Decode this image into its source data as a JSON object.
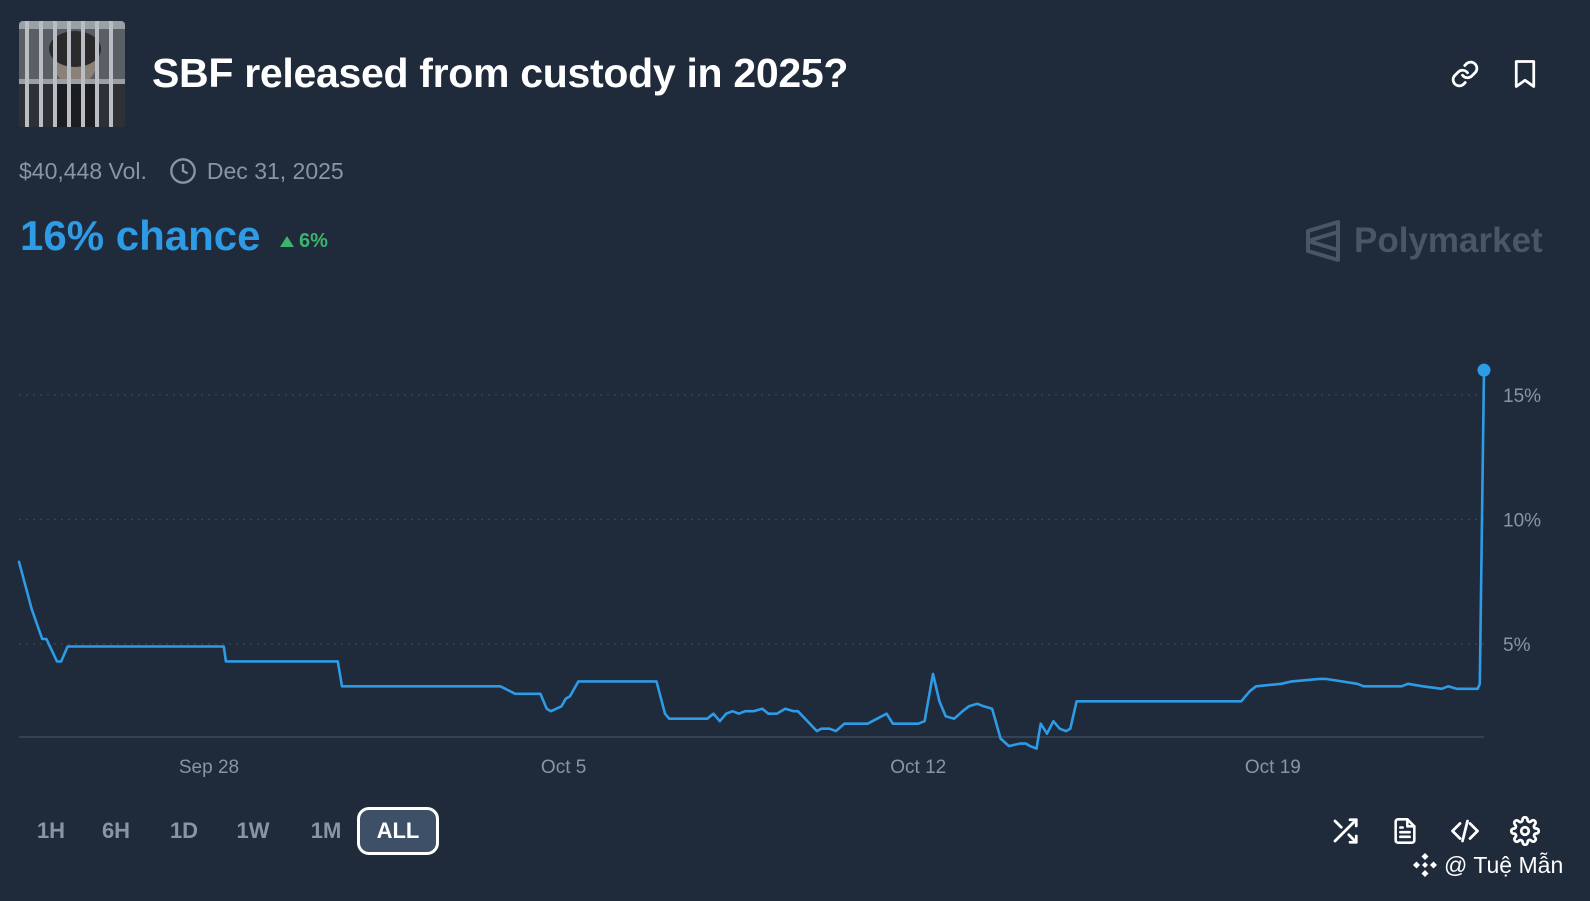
{
  "header": {
    "title": "SBF released from custody in 2025?",
    "thumbnail_icon": "market-thumbnail-image",
    "actions": [
      {
        "icon": "link-icon"
      },
      {
        "icon": "bookmark-icon"
      }
    ]
  },
  "meta": {
    "volume": "$40,448 Vol.",
    "end_date": "Dec 31, 2025",
    "clock_icon": "clock-icon"
  },
  "probability": {
    "chance": "16% chance",
    "change": "6%",
    "change_icon": "triangle-up-icon"
  },
  "brand": {
    "name": "Polymarket"
  },
  "chart_data": {
    "type": "line",
    "x_labels": [
      "Sep 28",
      "Oct 5",
      "Oct 12",
      "Oct 19"
    ],
    "y_ticks": [
      "15%",
      "10%",
      "5%"
    ],
    "ylim": [
      0,
      18
    ],
    "grid": true,
    "line_color": "#2e9be6",
    "grid_color": "#3a4658",
    "series": [
      {
        "x": [
          "Sep 24 06:00",
          "Sep 24 12:00",
          "Sep 24 17:00",
          "Sep 24 19:00",
          "Sep 25 00:00",
          "Sep 25 02:00",
          "Sep 25 05:00",
          "Sep 25 08:00",
          "Sep 25 09:00",
          "Sep 25 11:00",
          "Sep 25 13:00",
          "Sep 28 07:00",
          "Sep 28 08:00",
          "Sep 30 13:00",
          "Sep 30 15:00",
          "Oct 3 18:00",
          "Oct 4 01:00",
          "Oct 4 13:00",
          "Oct 4 16:00",
          "Oct 4 18:00",
          "Oct 4 23:00",
          "Oct 5 01:00",
          "Oct 5 03:00",
          "Oct 5 05:00",
          "Oct 5 07:00",
          "Oct 5 10:00",
          "Oct 5 14:00",
          "Oct 6 20:00",
          "Oct 7 00:00",
          "Oct 7 02:00",
          "Oct 7 20:00",
          "Oct 7 23:00",
          "Oct 8 02:00",
          "Oct 8 05:00",
          "Oct 8 08:00",
          "Oct 8 11:00",
          "Oct 8 14:00",
          "Oct 8 18:00",
          "Oct 8 22:00",
          "Oct 9 01:00",
          "Oct 9 05:00",
          "Oct 9 09:00",
          "Oct 9 13:00",
          "Oct 9 15:00",
          "Oct 10 00:00",
          "Oct 10 02:00",
          "Oct 10 06:00",
          "Oct 10 09:00",
          "Oct 10 13:00",
          "Oct 10 16:00",
          "Oct 10 20:00",
          "Oct 11 00:00",
          "Oct 11 09:00",
          "Oct 11 12:00",
          "Oct 11 15:00",
          "Oct 12 00:00",
          "Oct 12 03:00",
          "Oct 12 07:00",
          "Oct 12 10:00",
          "Oct 12 13:00",
          "Oct 12 17:00",
          "Oct 12 21:00",
          "Oct 13 00:00",
          "Oct 13 04:00",
          "Oct 13 07:00",
          "Oct 13 11:00",
          "Oct 13 15:00",
          "Oct 13 19:00",
          "Oct 14 00:00",
          "Oct 14 03:00",
          "Oct 14 05:00",
          "Oct 14 08:00",
          "Oct 14 10:00",
          "Oct 14 13:00",
          "Oct 14 16:00",
          "Oct 14 19:00",
          "Oct 14 22:00",
          "Oct 15 00:00",
          "Oct 15 03:00",
          "Oct 17 19:00",
          "Oct 18 02:00",
          "Oct 18 09:00",
          "Oct 18 13:00",
          "Oct 18 16:00",
          "Oct 19 04:00",
          "Oct 19 09:00",
          "Oct 19 22:00",
          "Oct 20 01:00",
          "Oct 20 16:00",
          "Oct 20 19:00",
          "Oct 21 13:00",
          "Oct 21 16:00",
          "Oct 21 23:00",
          "Oct 22 08:00",
          "Oct 22 11:00",
          "Oct 22 15:00",
          "Oct 22 20:00",
          "Oct 23 01:00",
          "Oct 23 02:00",
          "Oct 23 04:00"
        ],
        "values": [
          8.3,
          6.4,
          5.2,
          5.2,
          4.3,
          4.3,
          4.9,
          4.9,
          4.9,
          4.9,
          4.9,
          4.9,
          4.3,
          4.3,
          3.3,
          3.3,
          3.0,
          3.0,
          2.4,
          2.3,
          2.5,
          2.8,
          2.9,
          3.2,
          3.5,
          3.5,
          3.5,
          3.5,
          2.2,
          2.0,
          2.0,
          2.2,
          1.9,
          2.2,
          2.3,
          2.2,
          2.3,
          2.3,
          2.4,
          2.2,
          2.2,
          2.4,
          2.3,
          2.3,
          1.5,
          1.6,
          1.6,
          1.5,
          1.8,
          1.8,
          1.8,
          1.8,
          2.2,
          1.8,
          1.8,
          1.8,
          1.9,
          3.8,
          2.7,
          2.1,
          2.0,
          2.3,
          2.5,
          2.6,
          2.5,
          2.4,
          1.2,
          0.9,
          1.0,
          1.0,
          0.9,
          0.8,
          1.8,
          1.4,
          1.9,
          1.6,
          1.5,
          1.6,
          2.7,
          2.7,
          2.7,
          2.7,
          3.1,
          3.3,
          3.4,
          3.5,
          3.6,
          3.6,
          3.4,
          3.3,
          3.3,
          3.4,
          3.3,
          3.2,
          3.3,
          3.2,
          3.2,
          3.2,
          3.4,
          16.0
        ]
      }
    ]
  },
  "time_ranges": [
    "1H",
    "6H",
    "1D",
    "1W",
    "1M",
    "ALL"
  ],
  "active_range": "ALL",
  "tools": [
    {
      "icon": "shuffle-icon"
    },
    {
      "icon": "document-icon"
    },
    {
      "icon": "code-icon"
    },
    {
      "icon": "settings-icon"
    }
  ],
  "watermark": {
    "text": "@ Tuệ Mẫn",
    "icon": "binance-logo-icon"
  }
}
